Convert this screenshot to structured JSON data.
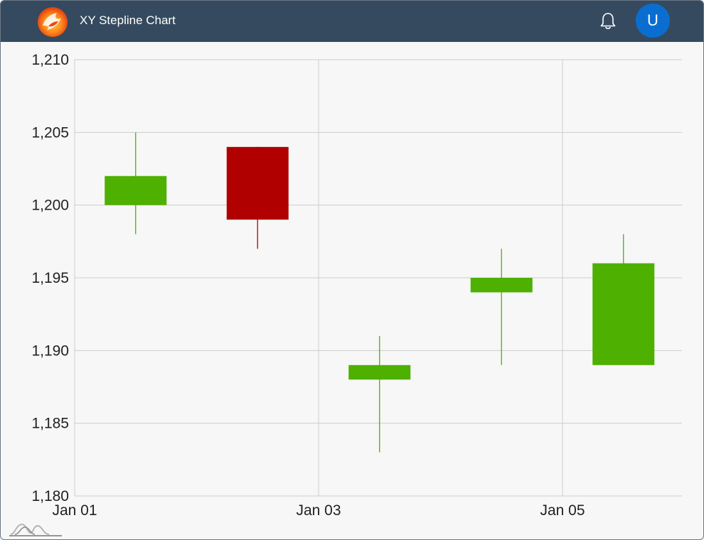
{
  "header": {
    "title": "XY Stepline Chart",
    "bell_icon": "bell-icon",
    "avatar_initial": "U",
    "logo_icon": "phoenix-logo-icon"
  },
  "colors": {
    "shellbar": "#354a5f",
    "avatar": "#0a6ed1",
    "increase": "#4eb000",
    "decrease": "#b00000",
    "grid": "#cccccc",
    "plot_background": "#f7f7f7"
  },
  "chart_data": {
    "type": "candlestick",
    "title": "",
    "xlabel": "",
    "ylabel": "",
    "ylim": [
      1180,
      1210
    ],
    "y_ticks": [
      1180,
      1185,
      1190,
      1195,
      1200,
      1205,
      1210
    ],
    "y_tick_labels": [
      "1,180",
      "1,185",
      "1,190",
      "1,195",
      "1,200",
      "1,205",
      "1,210"
    ],
    "x_ticks": [
      "2024-01-01",
      "2024-01-03",
      "2024-01-05"
    ],
    "x_tick_labels": [
      "Jan 01",
      "Jan 03",
      "Jan 05"
    ],
    "grid": true,
    "legend": "none",
    "candles": [
      {
        "date": "2024-01-01",
        "open": 1200,
        "high": 1205,
        "low": 1198,
        "close": 1202
      },
      {
        "date": "2024-01-02",
        "open": 1204,
        "high": 1204,
        "low": 1197,
        "close": 1199
      },
      {
        "date": "2024-01-03",
        "open": 1188,
        "high": 1191,
        "low": 1183,
        "close": 1189
      },
      {
        "date": "2024-01-04",
        "open": 1194,
        "high": 1197,
        "low": 1189,
        "close": 1195
      },
      {
        "date": "2024-01-05",
        "open": 1189,
        "high": 1198,
        "low": 1189,
        "close": 1196
      }
    ]
  }
}
